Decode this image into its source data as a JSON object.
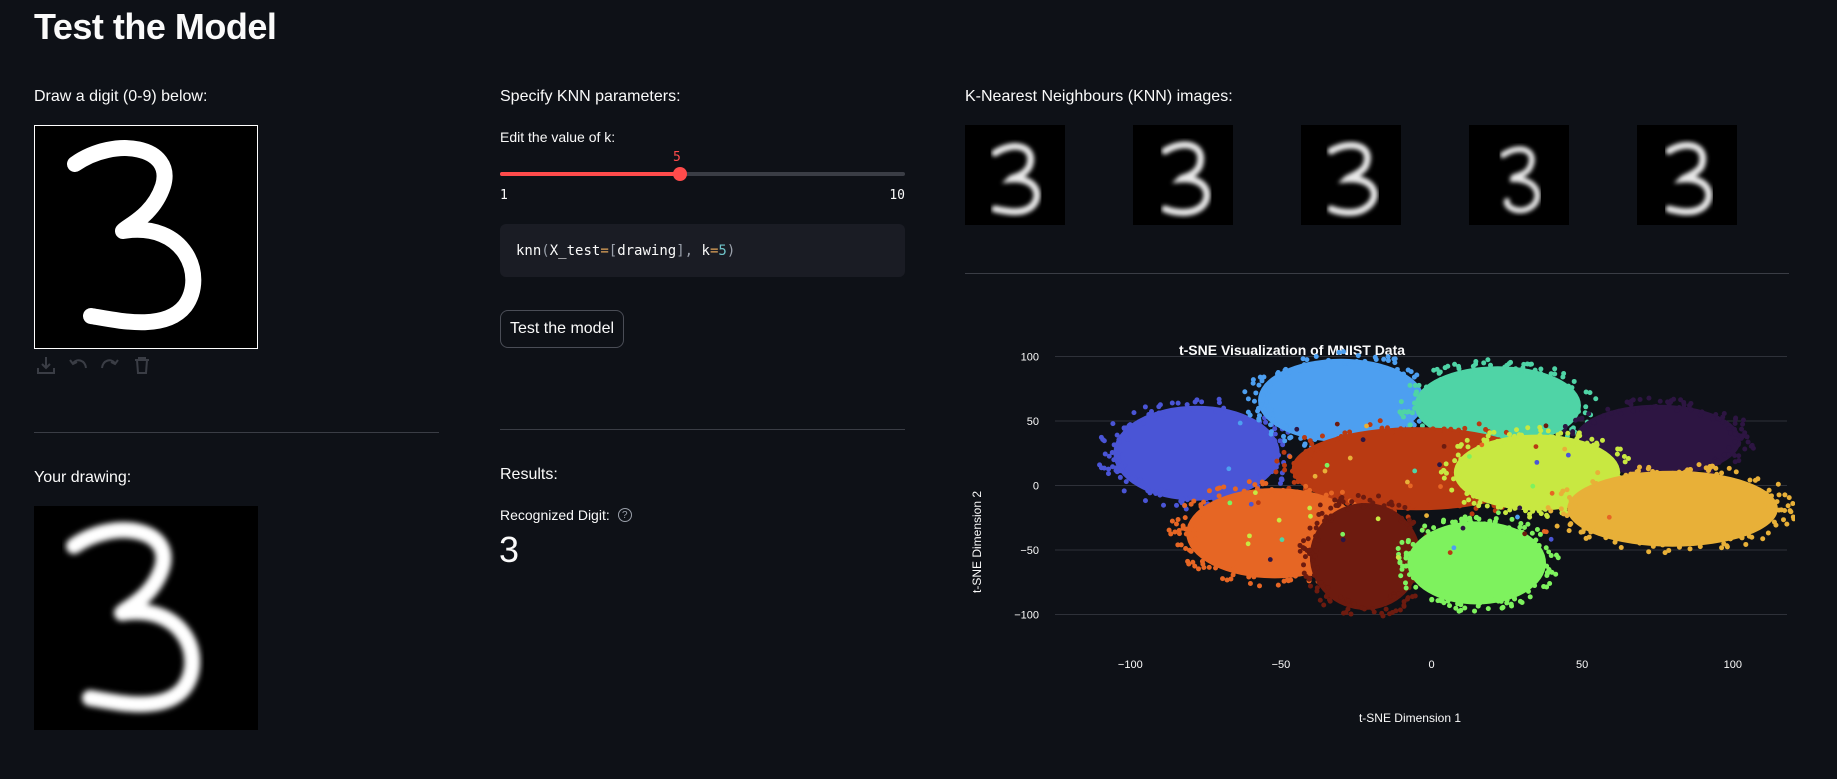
{
  "page": {
    "title": "Test the Model"
  },
  "draw": {
    "label": "Draw a digit (0-9) below:",
    "toolbar": [
      {
        "name": "download-icon",
        "glyph": "⤓"
      },
      {
        "name": "undo-icon",
        "glyph": "↶"
      },
      {
        "name": "redo-icon",
        "glyph": "↷"
      },
      {
        "name": "trash-icon",
        "glyph": "🗑"
      }
    ]
  },
  "your_drawing": {
    "label": "Your drawing:"
  },
  "knn_params": {
    "label": "Specify KNN parameters:",
    "slider_label": "Edit the value of k:",
    "k_value": "5",
    "k_min": "1",
    "k_max": "10",
    "k_fraction": 0.444
  },
  "code": {
    "fn": "knn",
    "arg1_name": "X_test",
    "arg1_val": "drawing",
    "arg2_name": "k",
    "arg2_val": "5"
  },
  "test_button": {
    "label": "Test the model"
  },
  "results": {
    "label": "Results:",
    "recognized_label": "Recognized Digit:",
    "help_glyph": "?",
    "digit": "3"
  },
  "knn_images": {
    "label": "K-Nearest Neighbours (KNN) images:",
    "count": 5
  },
  "colors": {
    "accent": "#ff4b4b",
    "background": "#0e1117",
    "code_bg": "#1a1c24"
  },
  "chart_data": {
    "type": "scatter",
    "title": "t-SNE Visualization of MNIST Data",
    "xlabel": "t-SNE Dimension 1",
    "ylabel": "t-SNE Dimension 2",
    "xlim": [
      -125,
      118
    ],
    "ylim": [
      -112,
      105
    ],
    "xticks": [
      -100,
      -50,
      0,
      50,
      100
    ],
    "yticks": [
      100,
      50,
      0,
      -50,
      -100
    ],
    "grid": true,
    "clusters": [
      {
        "color": "#4a55d6",
        "cx": -78,
        "cy": 25,
        "rx": 30,
        "ry": 40
      },
      {
        "color": "#4d9ff0",
        "cx": -30,
        "cy": 66,
        "rx": 30,
        "ry": 35
      },
      {
        "color": "#4fd4a6",
        "cx": 22,
        "cy": 62,
        "rx": 30,
        "ry": 33
      },
      {
        "color": "#2d1542",
        "cx": 75,
        "cy": 35,
        "rx": 30,
        "ry": 30
      },
      {
        "color": "#b93a12",
        "cx": -5,
        "cy": 13,
        "rx": 45,
        "ry": 35
      },
      {
        "color": "#c8e841",
        "cx": 35,
        "cy": 10,
        "rx": 30,
        "ry": 32
      },
      {
        "color": "#e8b038",
        "cx": 80,
        "cy": -18,
        "rx": 38,
        "ry": 32
      },
      {
        "color": "#e66624",
        "cx": -52,
        "cy": -37,
        "rx": 32,
        "ry": 38
      },
      {
        "color": "#6d1b0f",
        "cx": -22,
        "cy": -55,
        "rx": 20,
        "ry": 45
      },
      {
        "color": "#7ef25e",
        "cx": 15,
        "cy": -60,
        "rx": 25,
        "ry": 35
      }
    ]
  }
}
